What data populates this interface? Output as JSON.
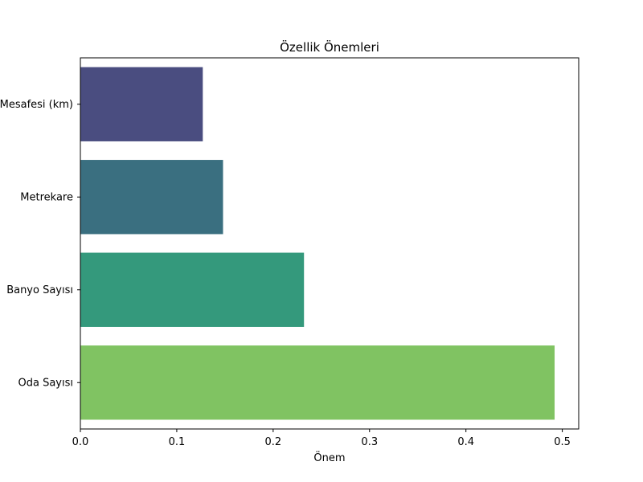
{
  "chart_data": {
    "type": "bar",
    "orientation": "horizontal",
    "title": "Özellik Önemleri",
    "xlabel": "Önem",
    "ylabel": "",
    "categories": [
      "Mesafesi (km)",
      "Metrekare",
      "Banyo Sayısı",
      "Oda Sayısı"
    ],
    "values": [
      0.127,
      0.148,
      0.232,
      0.492
    ],
    "colors": [
      "#4a4d80",
      "#3a6f80",
      "#34997c",
      "#80c362"
    ],
    "xlim": [
      0,
      0.517
    ],
    "xticks": [
      0.0,
      0.1,
      0.2,
      0.3,
      0.4,
      0.5
    ],
    "xtick_labels": [
      "0.0",
      "0.1",
      "0.2",
      "0.3",
      "0.4",
      "0.5"
    ],
    "grid": false,
    "legend": "none"
  }
}
